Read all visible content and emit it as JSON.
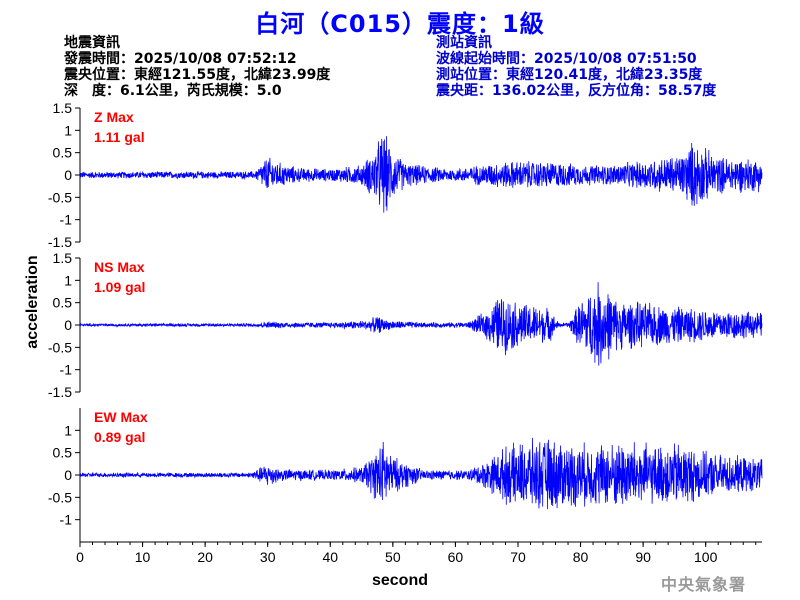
{
  "title": "白河（C015）震度：1級",
  "quake_info": {
    "heading": "地震資訊",
    "origin_time": "發震時間：2025/10/08 07:52:12",
    "epicenter": "震央位置：東經121.55度，北緯23.99度",
    "depth_magnitude": "深　度：6.1公里，芮氏規模：5.0"
  },
  "station_info": {
    "heading": "測站資訊",
    "wave_start": "波線起始時間：2025/10/08 07:51:50",
    "location": "測站位置：東經120.41度，北緯23.35度",
    "distance": "震央距：136.02公里，反方位角：58.57度"
  },
  "watermark": "中央氣象署",
  "chart_data": {
    "type": "line",
    "xlabel": "second",
    "ylabel": "acceleration",
    "xlim": [
      0,
      109
    ],
    "ylim": [
      -1.5,
      1.5
    ],
    "x_ticks": [
      "0",
      "10",
      "20",
      "30",
      "40",
      "50",
      "60",
      "70",
      "80",
      "90",
      "100"
    ],
    "y_ticks": [
      "1.5",
      "1",
      "0.5",
      "0",
      "-0.5",
      "-1",
      "-1.5"
    ],
    "y_ticks_last_panel": [
      "1",
      "0.5",
      "0",
      "-0.5",
      "-1"
    ],
    "colors": {
      "trace": "#0000ff",
      "max_label": "#ff0000",
      "axes": "#000000"
    },
    "series": [
      {
        "name": "Z Max",
        "max_label": "1.11 gal",
        "max": 1.11,
        "envelope": [
          [
            0,
            0.08
          ],
          [
            28,
            0.09
          ],
          [
            29,
            0.3
          ],
          [
            30,
            0.45
          ],
          [
            32,
            0.3
          ],
          [
            35,
            0.18
          ],
          [
            40,
            0.15
          ],
          [
            45,
            0.25
          ],
          [
            47,
            0.6
          ],
          [
            48.5,
            1.11
          ],
          [
            50,
            0.6
          ],
          [
            52,
            0.3
          ],
          [
            56,
            0.2
          ],
          [
            60,
            0.15
          ],
          [
            66,
            0.3
          ],
          [
            70,
            0.35
          ],
          [
            76,
            0.32
          ],
          [
            80,
            0.25
          ],
          [
            85,
            0.25
          ],
          [
            90,
            0.35
          ],
          [
            96,
            0.5
          ],
          [
            98,
            0.85
          ],
          [
            102,
            0.45
          ],
          [
            109,
            0.4
          ]
        ]
      },
      {
        "name": "NS Max",
        "max_label": "1.09 gal",
        "max": 1.09,
        "envelope": [
          [
            0,
            0.03
          ],
          [
            28,
            0.04
          ],
          [
            30,
            0.08
          ],
          [
            40,
            0.06
          ],
          [
            46,
            0.12
          ],
          [
            47.5,
            0.22
          ],
          [
            49,
            0.12
          ],
          [
            55,
            0.06
          ],
          [
            62,
            0.07
          ],
          [
            65,
            0.35
          ],
          [
            67,
            0.75
          ],
          [
            70,
            0.55
          ],
          [
            75,
            0.42
          ],
          [
            76.5,
            0.05
          ],
          [
            78,
            0.05
          ],
          [
            80,
            0.6
          ],
          [
            83,
            1.09
          ],
          [
            86,
            0.6
          ],
          [
            90,
            0.55
          ],
          [
            95,
            0.45
          ],
          [
            100,
            0.4
          ],
          [
            105,
            0.35
          ],
          [
            109,
            0.3
          ]
        ]
      },
      {
        "name": "EW Max",
        "max_label": "0.89 gal",
        "max": 0.89,
        "envelope": [
          [
            0,
            0.05
          ],
          [
            27,
            0.06
          ],
          [
            29,
            0.2
          ],
          [
            30,
            0.3
          ],
          [
            32,
            0.15
          ],
          [
            40,
            0.12
          ],
          [
            45,
            0.2
          ],
          [
            47,
            0.55
          ],
          [
            48.5,
            0.85
          ],
          [
            50,
            0.45
          ],
          [
            55,
            0.12
          ],
          [
            62,
            0.12
          ],
          [
            65,
            0.35
          ],
          [
            68,
            0.7
          ],
          [
            72,
            0.85
          ],
          [
            75,
            0.9
          ],
          [
            78,
            0.8
          ],
          [
            82,
            0.75
          ],
          [
            88,
            0.85
          ],
          [
            92,
            0.7
          ],
          [
            96,
            0.8
          ],
          [
            100,
            0.55
          ],
          [
            105,
            0.45
          ],
          [
            109,
            0.4
          ]
        ]
      }
    ]
  }
}
